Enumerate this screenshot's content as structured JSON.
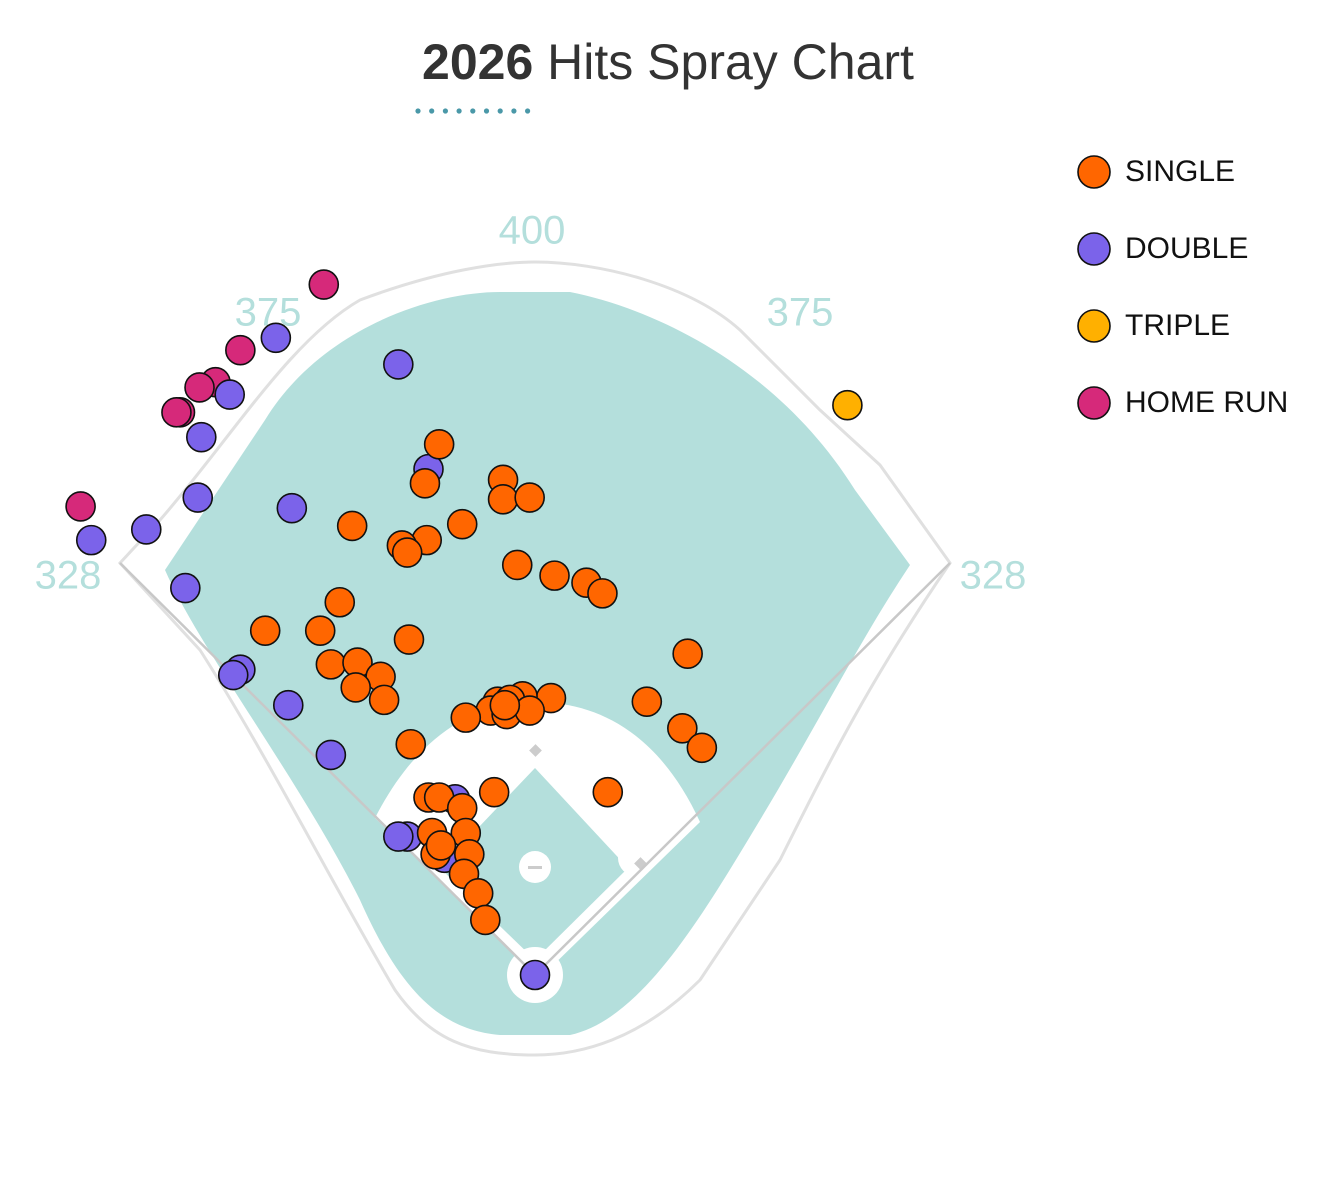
{
  "chart_data": {
    "type": "scatter",
    "title": [
      "2026",
      "Hits Spray Chart"
    ],
    "distances": [
      328,
      375,
      400,
      375,
      328
    ],
    "series": [
      {
        "name": "HOME RUN",
        "color": "#d6297a",
        "x": [
          -119,
          -166,
          -180,
          -189,
          -200,
          -202,
          -256
        ],
        "y": [
          389,
          352,
          334,
          331,
          317,
          317,
          264
        ]
      },
      {
        "name": "DOUBLE",
        "color": "#7b63ea",
        "x": [
          -146,
          -77,
          -172,
          -188,
          -60,
          -190,
          -137,
          -219,
          -250,
          -197,
          -166,
          -170,
          -139,
          -115,
          -72,
          -77,
          -51,
          0,
          -45
        ],
        "y": [
          359,
          344,
          327,
          303,
          285,
          269,
          263,
          251,
          245,
          218,
          172,
          169,
          152,
          124,
          78,
          78,
          66,
          0,
          99
        ]
      },
      {
        "name": "TRIPLE",
        "color": "#ffb000",
        "x": [
          176
        ],
        "y": [
          321
        ]
      },
      {
        "name": "SINGLE",
        "color": "#ff6600",
        "x": [
          -54,
          -62,
          -18,
          -18,
          -3,
          -103,
          -41,
          -61,
          -75,
          -72,
          -10,
          11,
          29,
          38,
          -110,
          -152,
          -121,
          -71,
          86,
          -115,
          -100,
          -87,
          -101,
          -85,
          63,
          9,
          -7,
          -21,
          -14,
          -25,
          -39,
          -16,
          -3,
          -17,
          83,
          94,
          -70,
          -23,
          41,
          -60,
          -54,
          -41,
          -58,
          -39,
          -56,
          -37,
          -53,
          -40,
          -32,
          -28
        ],
        "y": [
          299,
          277,
          279,
          268,
          269,
          253,
          254,
          245,
          242,
          238,
          231,
          225,
          221,
          215,
          210,
          194,
          194,
          189,
          181,
          175,
          176,
          168,
          162,
          155,
          154,
          156,
          157,
          154,
          155,
          149,
          145,
          147,
          149,
          152,
          139,
          128,
          130,
          103,
          103,
          100,
          100,
          94,
          80,
          80,
          68,
          68,
          73,
          57,
          46,
          31
        ]
      }
    ],
    "legend_order": [
      "SINGLE",
      "DOUBLE",
      "TRIPLE",
      "HOME RUN"
    ]
  }
}
